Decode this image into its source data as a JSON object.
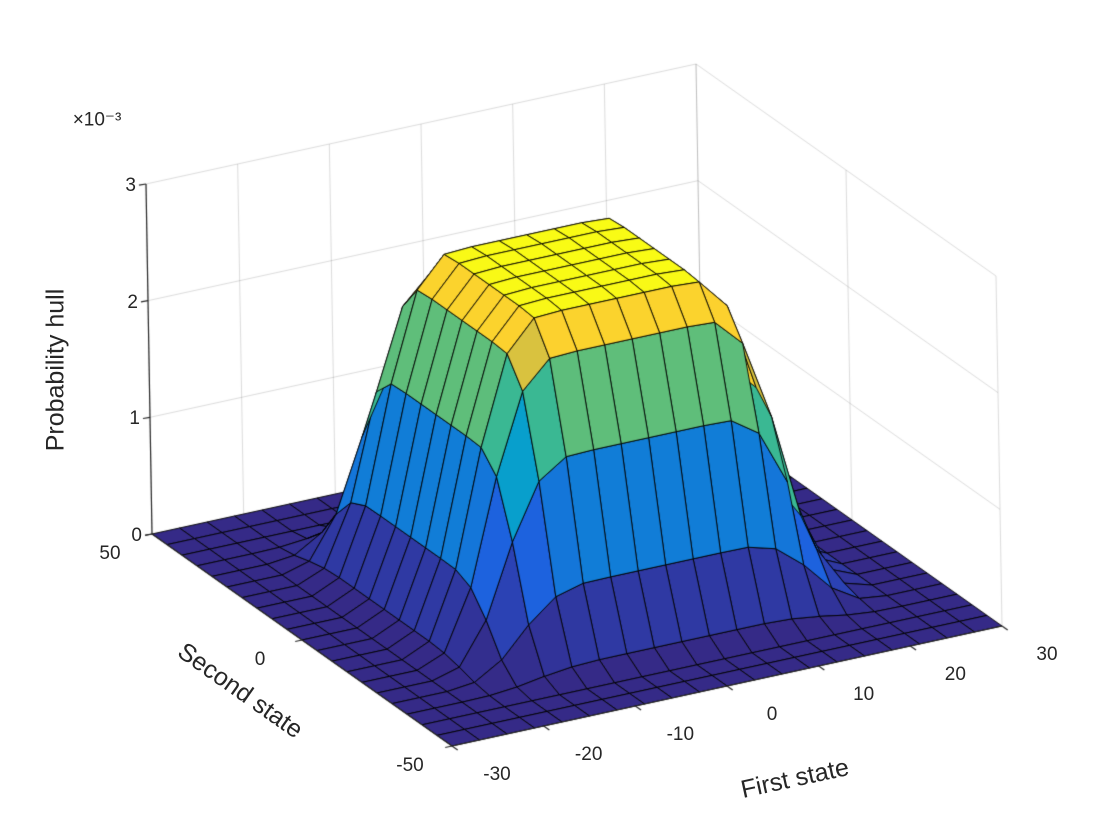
{
  "chart_data": {
    "type": "surface",
    "title": "",
    "xlabel": "First state",
    "ylabel": "Second state",
    "zlabel": "Probability hull",
    "z_exponent_label": "×10⁻³",
    "xlim": [
      -30,
      30
    ],
    "ylim": [
      -50,
      50
    ],
    "zlim": [
      0,
      0.003
    ],
    "x_ticks": [
      -30,
      -20,
      -10,
      0,
      10,
      20,
      30
    ],
    "y_ticks": [
      -50,
      0,
      50
    ],
    "z_ticks": [
      0,
      1,
      2,
      3
    ],
    "z_tick_scale": 0.001,
    "x": [
      -30,
      -27,
      -24,
      -21,
      -18,
      -15,
      -12,
      -9,
      -6,
      -3,
      0,
      3,
      6,
      9,
      12,
      15,
      18,
      21,
      24,
      27,
      30
    ],
    "y": [
      -50,
      -45,
      -40,
      -35,
      -30,
      -25,
      -20,
      -15,
      -10,
      -5,
      0,
      5,
      10,
      15,
      20,
      25,
      30,
      35,
      40,
      45,
      50
    ],
    "x_profile": [
      0,
      0,
      0,
      0.04,
      0.25,
      0.62,
      0.9,
      0.995,
      1,
      1,
      1,
      1,
      1,
      0.995,
      0.9,
      0.62,
      0.25,
      0.04,
      0,
      0,
      0
    ],
    "y_profile": [
      0,
      0,
      0,
      0.04,
      0.25,
      0.62,
      0.9,
      0.995,
      1,
      1,
      1,
      1,
      1,
      0.995,
      0.9,
      0.62,
      0.25,
      0.04,
      0,
      0,
      0
    ],
    "peak": 0.0027,
    "z_rule": "z[i][j] = peak * y_profile[i] * x_profile[j]",
    "colormap": {
      "name": "parula",
      "stops": [
        [
          0.0,
          53,
          42,
          135
        ],
        [
          0.125,
          33,
          89,
          224
        ],
        [
          0.25,
          17,
          125,
          215
        ],
        [
          0.375,
          7,
          157,
          207
        ],
        [
          0.5,
          24,
          178,
          170
        ],
        [
          0.625,
          98,
          190,
          120
        ],
        [
          0.75,
          184,
          188,
          74
        ],
        [
          0.875,
          252,
          201,
          51
        ],
        [
          1.0,
          249,
          251,
          21
        ]
      ]
    },
    "colors": {
      "axis": "#262626",
      "grid": "rgba(38,38,38,0.16)",
      "edge": "#000000",
      "background": "#ffffff"
    },
    "legend": "none",
    "grid": "on"
  }
}
